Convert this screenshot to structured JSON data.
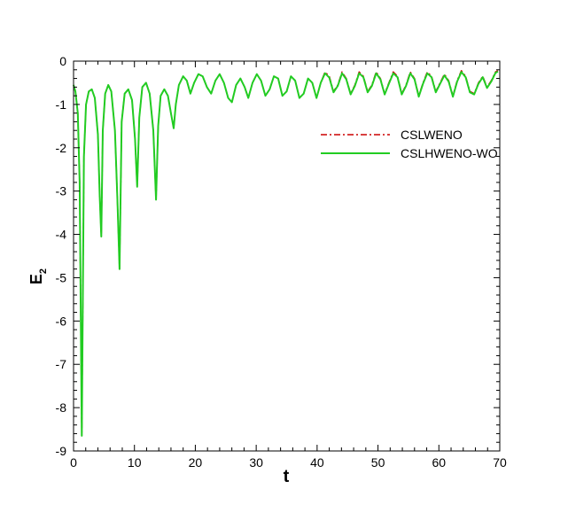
{
  "chart_data": {
    "type": "line",
    "title": "",
    "xlabel": "t",
    "ylabel_main": "E",
    "ylabel_sub": "2",
    "xlim": [
      0,
      70
    ],
    "ylim": [
      -9,
      0
    ],
    "x_ticks": [
      0,
      10,
      20,
      30,
      40,
      50,
      60,
      70
    ],
    "y_ticks": [
      0,
      -1,
      -2,
      -3,
      -4,
      -5,
      -6,
      -7,
      -8,
      -9
    ],
    "x_tick_labels": [
      "0",
      "10",
      "20",
      "30",
      "40",
      "50",
      "60",
      "70"
    ],
    "y_tick_labels": [
      "0",
      "-1",
      "-2",
      "-3",
      "-4",
      "-5",
      "-6",
      "-7",
      "-8",
      "-9"
    ],
    "grid": false,
    "legend_position": "upper-right",
    "series": [
      {
        "name": "CSLWENO",
        "color": "#cc0000",
        "dash": "dash-dot",
        "x": [
          0.0,
          0.3,
          0.7,
          1.0,
          1.35,
          1.7,
          2.05,
          2.5,
          3.0,
          3.5,
          4.0,
          4.3,
          4.55,
          4.8,
          5.2,
          5.7,
          6.2,
          6.8,
          7.2,
          7.55,
          7.9,
          8.4,
          9.0,
          9.6,
          10.1,
          10.45,
          10.8,
          11.3,
          11.9,
          12.5,
          13.1,
          13.55,
          13.9,
          14.3,
          14.9,
          15.5,
          16.0,
          16.45,
          16.8,
          17.3,
          18.0,
          18.6,
          19.2,
          19.8,
          20.5,
          21.2,
          21.9,
          22.6,
          23.3,
          24.0,
          24.7,
          25.4,
          26.0,
          26.7,
          27.4,
          28.1,
          28.7,
          29.4,
          30.1,
          30.8,
          31.5,
          32.2,
          32.9,
          33.6,
          34.3,
          35.0,
          35.7,
          36.4,
          37.1,
          37.8,
          38.5,
          39.2,
          39.9,
          40.6,
          41.3,
          42.0,
          42.7,
          43.4,
          44.1,
          44.8,
          45.5,
          46.2,
          46.9,
          47.6,
          48.3,
          49.0,
          49.7,
          50.4,
          51.1,
          51.8,
          52.5,
          53.2,
          53.9,
          54.6,
          55.3,
          56.0,
          56.7,
          57.4,
          58.1,
          58.8,
          59.5,
          60.2,
          60.9,
          61.6,
          62.3,
          63.0,
          63.7,
          64.4,
          65.1,
          65.8,
          66.5,
          67.2,
          67.9,
          68.6,
          69.3,
          69.7
        ],
        "y": [
          -0.55,
          -0.7,
          -1.2,
          -2.8,
          -8.65,
          -2.2,
          -1.0,
          -0.7,
          -0.65,
          -0.85,
          -1.7,
          -3.1,
          -4.05,
          -1.6,
          -0.75,
          -0.55,
          -0.7,
          -1.6,
          -3.2,
          -4.8,
          -1.4,
          -0.75,
          -0.65,
          -0.9,
          -1.8,
          -2.9,
          -1.3,
          -0.6,
          -0.5,
          -0.75,
          -1.6,
          -3.2,
          -1.5,
          -0.8,
          -0.65,
          -0.8,
          -1.2,
          -1.55,
          -1.0,
          -0.55,
          -0.35,
          -0.45,
          -0.75,
          -0.5,
          -0.3,
          -0.35,
          -0.6,
          -0.75,
          -0.45,
          -0.3,
          -0.5,
          -0.85,
          -0.95,
          -0.55,
          -0.4,
          -0.6,
          -0.85,
          -0.5,
          -0.3,
          -0.45,
          -0.8,
          -0.65,
          -0.35,
          -0.4,
          -0.8,
          -0.7,
          -0.35,
          -0.45,
          -0.85,
          -0.75,
          -0.4,
          -0.5,
          -0.85,
          -0.5,
          -0.25,
          -0.35,
          -0.7,
          -0.55,
          -0.25,
          -0.4,
          -0.75,
          -0.55,
          -0.25,
          -0.35,
          -0.7,
          -0.55,
          -0.25,
          -0.4,
          -0.75,
          -0.5,
          -0.25,
          -0.35,
          -0.75,
          -0.55,
          -0.25,
          -0.4,
          -0.8,
          -0.5,
          -0.25,
          -0.35,
          -0.7,
          -0.5,
          -0.3,
          -0.45,
          -0.8,
          -0.45,
          -0.22,
          -0.35,
          -0.7,
          -0.75,
          -0.5,
          -0.35,
          -0.6,
          -0.45,
          -0.25,
          -0.22
        ]
      },
      {
        "name": "CSLHWENO-WO",
        "color": "#22cc22",
        "dash": "solid",
        "x": [
          0.0,
          0.3,
          0.7,
          1.0,
          1.35,
          1.7,
          2.05,
          2.5,
          3.0,
          3.5,
          4.0,
          4.3,
          4.55,
          4.8,
          5.2,
          5.7,
          6.2,
          6.8,
          7.2,
          7.55,
          7.9,
          8.4,
          9.0,
          9.6,
          10.1,
          10.45,
          10.8,
          11.3,
          11.9,
          12.5,
          13.1,
          13.55,
          13.9,
          14.3,
          14.9,
          15.5,
          16.0,
          16.45,
          16.8,
          17.3,
          18.0,
          18.6,
          19.2,
          19.8,
          20.5,
          21.2,
          21.9,
          22.6,
          23.3,
          24.0,
          24.7,
          25.4,
          26.0,
          26.7,
          27.4,
          28.1,
          28.7,
          29.4,
          30.1,
          30.8,
          31.5,
          32.2,
          32.9,
          33.6,
          34.3,
          35.0,
          35.7,
          36.4,
          37.1,
          37.8,
          38.5,
          39.2,
          39.9,
          40.6,
          41.3,
          42.0,
          42.7,
          43.4,
          44.1,
          44.8,
          45.5,
          46.2,
          46.9,
          47.6,
          48.3,
          49.0,
          49.7,
          50.4,
          51.1,
          51.8,
          52.5,
          53.2,
          53.9,
          54.6,
          55.3,
          56.0,
          56.7,
          57.4,
          58.1,
          58.8,
          59.5,
          60.2,
          60.9,
          61.6,
          62.3,
          63.0,
          63.7,
          64.4,
          65.1,
          65.8,
          66.5,
          67.2,
          67.9,
          68.6,
          69.3,
          69.7
        ],
        "y": [
          -0.55,
          -0.7,
          -1.2,
          -2.8,
          -8.65,
          -2.2,
          -1.0,
          -0.7,
          -0.65,
          -0.85,
          -1.7,
          -3.1,
          -4.05,
          -1.6,
          -0.75,
          -0.55,
          -0.7,
          -1.6,
          -3.2,
          -4.8,
          -1.4,
          -0.75,
          -0.65,
          -0.9,
          -1.8,
          -2.9,
          -1.3,
          -0.6,
          -0.5,
          -0.75,
          -1.6,
          -3.2,
          -1.5,
          -0.8,
          -0.65,
          -0.8,
          -1.2,
          -1.55,
          -1.0,
          -0.55,
          -0.35,
          -0.45,
          -0.75,
          -0.5,
          -0.3,
          -0.35,
          -0.6,
          -0.75,
          -0.45,
          -0.3,
          -0.5,
          -0.85,
          -0.95,
          -0.55,
          -0.4,
          -0.6,
          -0.85,
          -0.5,
          -0.3,
          -0.45,
          -0.8,
          -0.65,
          -0.35,
          -0.4,
          -0.8,
          -0.7,
          -0.35,
          -0.45,
          -0.85,
          -0.75,
          -0.4,
          -0.5,
          -0.85,
          -0.5,
          -0.28,
          -0.38,
          -0.72,
          -0.57,
          -0.28,
          -0.42,
          -0.77,
          -0.57,
          -0.28,
          -0.37,
          -0.72,
          -0.57,
          -0.28,
          -0.42,
          -0.77,
          -0.52,
          -0.28,
          -0.37,
          -0.77,
          -0.57,
          -0.28,
          -0.42,
          -0.82,
          -0.52,
          -0.28,
          -0.37,
          -0.72,
          -0.52,
          -0.33,
          -0.47,
          -0.82,
          -0.47,
          -0.25,
          -0.37,
          -0.72,
          -0.77,
          -0.52,
          -0.37,
          -0.62,
          -0.47,
          -0.27,
          -0.24
        ]
      }
    ]
  }
}
